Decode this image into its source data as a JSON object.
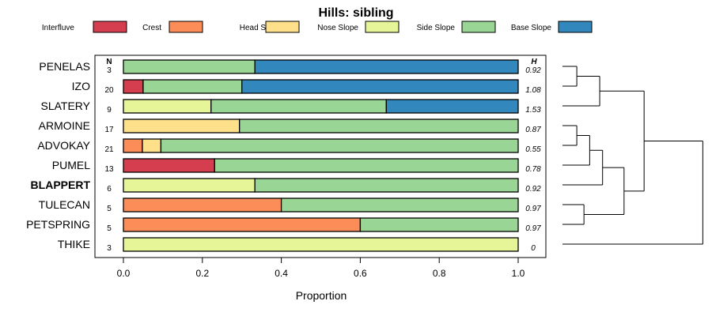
{
  "chart_data": {
    "type": "bar",
    "stacked": true,
    "orientation": "horizontal",
    "title": "Hills: sibling",
    "xlabel": "Proportion",
    "xlim": [
      0,
      1
    ],
    "x_ticks": [
      "0.0",
      "0.2",
      "0.4",
      "0.6",
      "0.8",
      "1.0"
    ],
    "x_tick_values": [
      0,
      0.2,
      0.4,
      0.6,
      0.8,
      1.0
    ],
    "n_header": "N",
    "h_header": "H",
    "legend_placement": "top",
    "legend": [
      {
        "name": "Interfluve",
        "color": "#D53E4F"
      },
      {
        "name": "Crest",
        "color": "#FC8D59"
      },
      {
        "name": "Head Slope",
        "color": "#FEE08B"
      },
      {
        "name": "Nose Slope",
        "color": "#E6F598"
      },
      {
        "name": "Side Slope",
        "color": "#99D594"
      },
      {
        "name": "Base Slope",
        "color": "#3288BD"
      }
    ],
    "rows": [
      {
        "label": "PENELAS",
        "bold": false,
        "n": "3",
        "h": "0.92",
        "segments": [
          0,
          0,
          0,
          0,
          0.333,
          0.667
        ]
      },
      {
        "label": "IZO",
        "bold": false,
        "n": "20",
        "h": "1.08",
        "segments": [
          0.05,
          0,
          0,
          0,
          0.25,
          0.7
        ]
      },
      {
        "label": "SLATERY",
        "bold": false,
        "n": "9",
        "h": "1.53",
        "segments": [
          0,
          0,
          0,
          0.222,
          0.444,
          0.334
        ]
      },
      {
        "label": "ARMOINE",
        "bold": false,
        "n": "17",
        "h": "0.87",
        "segments": [
          0,
          0,
          0.294,
          0,
          0.706,
          0
        ]
      },
      {
        "label": "ADVOKAY",
        "bold": false,
        "n": "21",
        "h": "0.55",
        "segments": [
          0,
          0.048,
          0.047,
          0,
          0.905,
          0
        ]
      },
      {
        "label": "PUMEL",
        "bold": false,
        "n": "13",
        "h": "0.78",
        "segments": [
          0.231,
          0,
          0,
          0,
          0.769,
          0
        ]
      },
      {
        "label": "BLAPPERT",
        "bold": true,
        "n": "6",
        "h": "0.92",
        "segments": [
          0,
          0,
          0,
          0.333,
          0.667,
          0
        ]
      },
      {
        "label": "TULECAN",
        "bold": false,
        "n": "5",
        "h": "0.97",
        "segments": [
          0,
          0.4,
          0,
          0,
          0.6,
          0
        ]
      },
      {
        "label": "PETSPRING",
        "bold": false,
        "n": "5",
        "h": "0.97",
        "segments": [
          0,
          0.6,
          0,
          0,
          0.4,
          0
        ]
      },
      {
        "label": "THIKE",
        "bold": false,
        "n": "3",
        "h": "0",
        "segments": [
          0,
          0,
          0,
          1.0,
          0,
          0
        ]
      }
    ],
    "dendrogram": {
      "merges": [
        {
          "left": 0,
          "right": 1,
          "height": 0.1
        },
        {
          "left": 3,
          "right": 4,
          "height": 0.1
        },
        {
          "left": 7,
          "right": 8,
          "height": 0.15
        },
        {
          "left": 10,
          "right": 2,
          "height": 0.26
        },
        {
          "left": 11,
          "right": 5,
          "height": 0.19
        },
        {
          "left": 14,
          "right": 6,
          "height": 0.28
        },
        {
          "left": 15,
          "right": 12,
          "height": 0.43
        },
        {
          "left": 13,
          "right": 16,
          "height": 0.57
        },
        {
          "left": 17,
          "right": 9,
          "height": 0.98
        }
      ]
    }
  }
}
